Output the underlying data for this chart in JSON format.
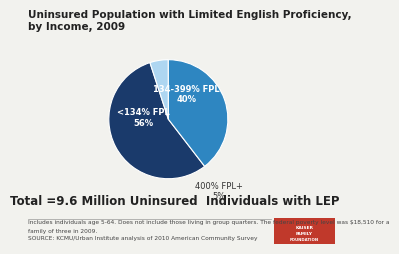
{
  "title": "Uninsured Population with Limited English Proficiency,\nby Income, 2009",
  "slices": [
    56,
    40,
    5
  ],
  "colors": [
    "#1a3a6b",
    "#2e86c1",
    "#aed6f1"
  ],
  "startangle": 108,
  "total_label": "Total =9.6 Million Uninsured  Individuals with LEP",
  "footnote1": "Includes individuals age 5-64. Does not include those living in group quarters. The federal poverty level was $18,510 for a",
  "footnote2": "family of three in 2009.",
  "footnote3": "SOURCE: KCMU/Urban Institute analysis of 2010 American Community Survey",
  "background_color": "#f2f2ee",
  "title_fontsize": 7.5,
  "total_fontsize": 8.5,
  "footnote_fontsize": 4.2,
  "label_fontsize": 6.0
}
